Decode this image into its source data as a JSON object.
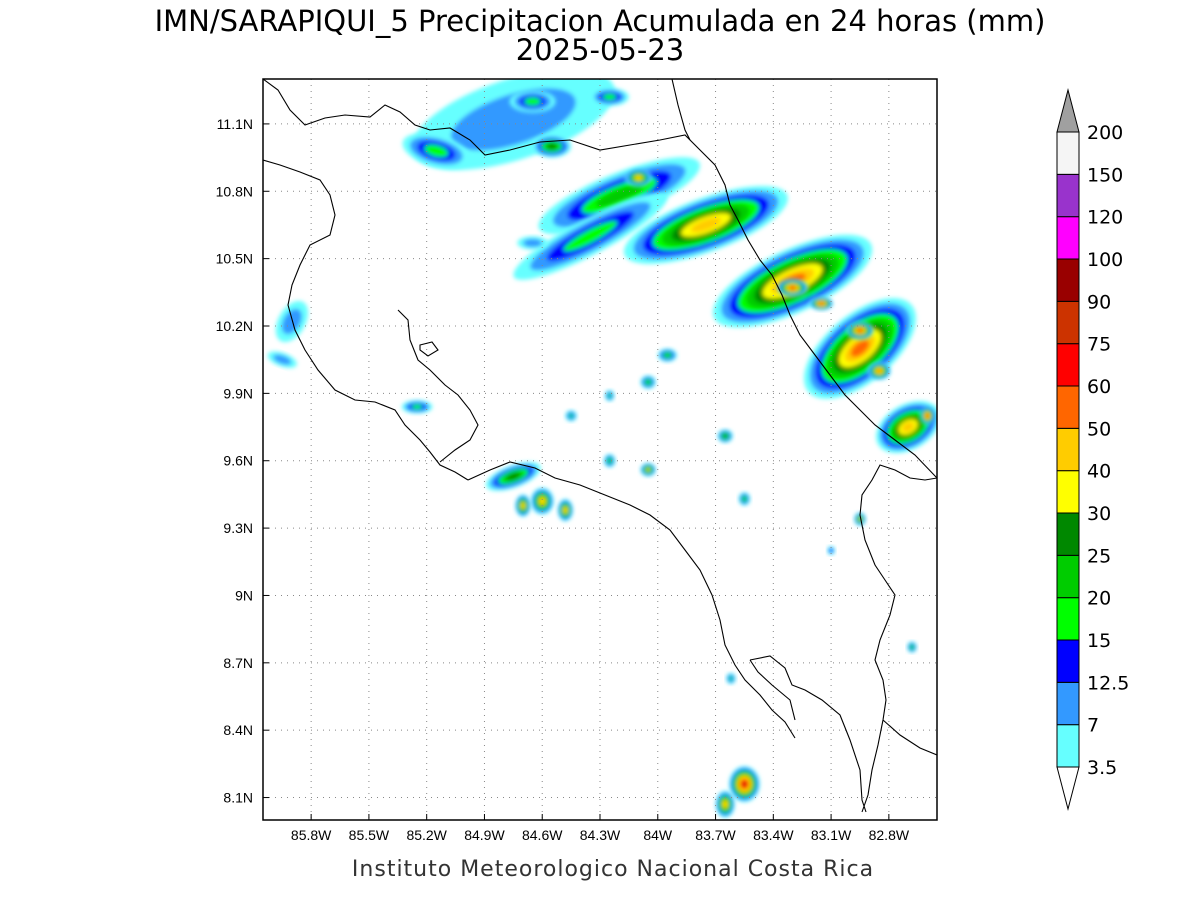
{
  "title_line1": "IMN/SARAPIQUI_5 Precipitacion Acumulada en 24 horas (mm)",
  "title_line2": "2025-05-23",
  "footer": "Instituto Meteorologico Nacional Costa Rica",
  "map": {
    "lon_range": [
      -86.05,
      -82.55
    ],
    "lat_range": [
      8.0,
      11.3
    ],
    "lon_ticks": [
      {
        "value": -85.8,
        "label": "85.8W"
      },
      {
        "value": -85.5,
        "label": "85.5W"
      },
      {
        "value": -85.2,
        "label": "85.2W"
      },
      {
        "value": -84.9,
        "label": "84.9W"
      },
      {
        "value": -84.6,
        "label": "84.6W"
      },
      {
        "value": -84.3,
        "label": "84.3W"
      },
      {
        "value": -84.0,
        "label": "84W"
      },
      {
        "value": -83.7,
        "label": "83.7W"
      },
      {
        "value": -83.4,
        "label": "83.4W"
      },
      {
        "value": -83.1,
        "label": "83.1W"
      },
      {
        "value": -82.8,
        "label": "82.8W"
      }
    ],
    "lat_ticks": [
      {
        "value": 11.1,
        "label": "11.1N"
      },
      {
        "value": 10.8,
        "label": "10.8N"
      },
      {
        "value": 10.5,
        "label": "10.5N"
      },
      {
        "value": 10.2,
        "label": "10.2N"
      },
      {
        "value": 9.9,
        "label": "9.9N"
      },
      {
        "value": 9.6,
        "label": "9.6N"
      },
      {
        "value": 9.3,
        "label": "9.3N"
      },
      {
        "value": 9.0,
        "label": "9N"
      },
      {
        "value": 8.7,
        "label": "8.7N"
      },
      {
        "value": 8.4,
        "label": "8.4N"
      },
      {
        "value": 8.1,
        "label": "8.1N"
      }
    ],
    "grid": true
  },
  "colorbar": {
    "levels": [
      "3.5",
      "7",
      "12.5",
      "15",
      "20",
      "25",
      "30",
      "40",
      "50",
      "60",
      "75",
      "90",
      "100",
      "120",
      "150",
      "200"
    ],
    "colors": [
      "#ffffff",
      "#66ffff",
      "#3399ff",
      "#0000ff",
      "#00ff00",
      "#00cc00",
      "#008800",
      "#ffff00",
      "#ffcc00",
      "#ff6600",
      "#ff0000",
      "#cc3300",
      "#990000",
      "#ff00ff",
      "#9933cc",
      "#f5f5f5",
      "#a0a0a0"
    ]
  },
  "precip_cells": [
    {
      "name": "north-band",
      "lon": -84.75,
      "lat": 11.12,
      "v": 12,
      "rx": 0.55,
      "ry": 0.18,
      "rot": 18
    },
    {
      "name": "nw-cell",
      "lon": -85.15,
      "lat": 10.98,
      "v": 15,
      "rx": 0.18,
      "ry": 0.07,
      "rot": -15
    },
    {
      "name": "nw-cell-2",
      "lon": -84.55,
      "lat": 11.0,
      "v": 25,
      "rx": 0.1,
      "ry": 0.05,
      "rot": 0
    },
    {
      "name": "n-cell",
      "lon": -84.65,
      "lat": 11.2,
      "v": 15,
      "rx": 0.12,
      "ry": 0.05,
      "rot": 0
    },
    {
      "name": "n-cell-2",
      "lon": -84.25,
      "lat": 11.22,
      "v": 15,
      "rx": 0.1,
      "ry": 0.04,
      "rot": 0
    },
    {
      "name": "mid-band-a",
      "lon": -84.2,
      "lat": 10.78,
      "v": 20,
      "rx": 0.45,
      "ry": 0.1,
      "rot": 22
    },
    {
      "name": "mid-band-b",
      "lon": -84.35,
      "lat": 10.6,
      "v": 15,
      "rx": 0.45,
      "ry": 0.08,
      "rot": 28
    },
    {
      "name": "cell-a",
      "lon": -84.1,
      "lat": 10.86,
      "v": 40,
      "rx": 0.07,
      "ry": 0.04,
      "rot": 0
    },
    {
      "name": "cell-b",
      "lon": -84.65,
      "lat": 10.57,
      "v": 12,
      "rx": 0.08,
      "ry": 0.03,
      "rot": 0
    },
    {
      "name": "main-band-1",
      "lon": -83.75,
      "lat": 10.65,
      "v": 40,
      "rx": 0.45,
      "ry": 0.12,
      "rot": 20
    },
    {
      "name": "main-band-2",
      "lon": -83.3,
      "lat": 10.4,
      "v": 50,
      "rx": 0.45,
      "ry": 0.14,
      "rot": 25
    },
    {
      "name": "main-band-3",
      "lon": -82.95,
      "lat": 10.1,
      "v": 50,
      "rx": 0.35,
      "ry": 0.15,
      "rot": 40
    },
    {
      "name": "main-band-4",
      "lon": -82.7,
      "lat": 9.75,
      "v": 40,
      "rx": 0.18,
      "ry": 0.1,
      "rot": 30
    },
    {
      "name": "hot-1",
      "lon": -83.3,
      "lat": 10.37,
      "v": 60,
      "rx": 0.08,
      "ry": 0.04,
      "rot": 0
    },
    {
      "name": "hot-2",
      "lon": -82.95,
      "lat": 10.18,
      "v": 60,
      "rx": 0.07,
      "ry": 0.04,
      "rot": 0
    },
    {
      "name": "hot-3",
      "lon": -82.6,
      "lat": 9.8,
      "v": 60,
      "rx": 0.04,
      "ry": 0.04,
      "rot": 0
    },
    {
      "name": "hot-4",
      "lon": -83.15,
      "lat": 10.3,
      "v": 60,
      "rx": 0.06,
      "ry": 0.03,
      "rot": 0
    },
    {
      "name": "hot-5",
      "lon": -82.85,
      "lat": 10.0,
      "v": 50,
      "rx": 0.06,
      "ry": 0.04,
      "rot": 0
    },
    {
      "name": "west-cell-1",
      "lon": -85.95,
      "lat": 10.05,
      "v": 7,
      "rx": 0.08,
      "ry": 0.03,
      "rot": -20
    },
    {
      "name": "west-cell-2",
      "lon": -85.25,
      "lat": 9.84,
      "v": 15,
      "rx": 0.08,
      "ry": 0.03,
      "rot": 0
    },
    {
      "name": "west-cell-3",
      "lon": -85.9,
      "lat": 10.22,
      "v": 7,
      "rx": 0.07,
      "ry": 0.1,
      "rot": -30
    },
    {
      "name": "nicoya-cell-1",
      "lon": -84.75,
      "lat": 9.53,
      "v": 25,
      "rx": 0.15,
      "ry": 0.05,
      "rot": 20
    },
    {
      "name": "nicoya-cell-2",
      "lon": -84.6,
      "lat": 9.42,
      "v": 40,
      "rx": 0.06,
      "ry": 0.06,
      "rot": 0
    },
    {
      "name": "nicoya-cell-3",
      "lon": -84.7,
      "lat": 9.4,
      "v": 40,
      "rx": 0.04,
      "ry": 0.05,
      "rot": 0
    },
    {
      "name": "nicoya-cell-4",
      "lon": -84.48,
      "lat": 9.38,
      "v": 40,
      "rx": 0.04,
      "ry": 0.05,
      "rot": 0
    },
    {
      "name": "central-cell-1",
      "lon": -84.05,
      "lat": 9.95,
      "v": 20,
      "rx": 0.04,
      "ry": 0.03,
      "rot": 0
    },
    {
      "name": "central-cell-2",
      "lon": -83.95,
      "lat": 10.07,
      "v": 20,
      "rx": 0.05,
      "ry": 0.03,
      "rot": 0
    },
    {
      "name": "central-cell-3",
      "lon": -84.25,
      "lat": 9.6,
      "v": 20,
      "rx": 0.03,
      "ry": 0.03,
      "rot": 0
    },
    {
      "name": "central-cell-4",
      "lon": -84.05,
      "lat": 9.56,
      "v": 30,
      "rx": 0.04,
      "ry": 0.03,
      "rot": 0
    },
    {
      "name": "central-cell-5",
      "lon": -83.65,
      "lat": 9.71,
      "v": 25,
      "rx": 0.04,
      "ry": 0.03,
      "rot": 0
    },
    {
      "name": "central-cell-6",
      "lon": -83.55,
      "lat": 9.43,
      "v": 20,
      "rx": 0.03,
      "ry": 0.03,
      "rot": 0
    },
    {
      "name": "central-cell-7",
      "lon": -84.45,
      "lat": 9.8,
      "v": 15,
      "rx": 0.03,
      "ry": 0.025,
      "rot": 0
    },
    {
      "name": "central-cell-8",
      "lon": -84.25,
      "lat": 9.89,
      "v": 15,
      "rx": 0.025,
      "ry": 0.025,
      "rot": 0
    },
    {
      "name": "se-cell-1",
      "lon": -82.95,
      "lat": 9.34,
      "v": 30,
      "rx": 0.03,
      "ry": 0.03,
      "rot": 0
    },
    {
      "name": "se-cell-2",
      "lon": -82.68,
      "lat": 8.77,
      "v": 20,
      "rx": 0.025,
      "ry": 0.025,
      "rot": 0
    },
    {
      "name": "se-cell-3",
      "lon": -83.1,
      "lat": 9.2,
      "v": 12.5,
      "rx": 0.02,
      "ry": 0.02,
      "rot": 0
    },
    {
      "name": "south-cell-1",
      "lon": -83.55,
      "lat": 8.16,
      "v": 75,
      "rx": 0.08,
      "ry": 0.08,
      "rot": 0
    },
    {
      "name": "south-cell-2",
      "lon": -83.65,
      "lat": 8.07,
      "v": 40,
      "rx": 0.05,
      "ry": 0.06,
      "rot": 0
    },
    {
      "name": "south-cell-3",
      "lon": -83.62,
      "lat": 8.63,
      "v": 15,
      "rx": 0.025,
      "ry": 0.025,
      "rot": 0
    }
  ]
}
